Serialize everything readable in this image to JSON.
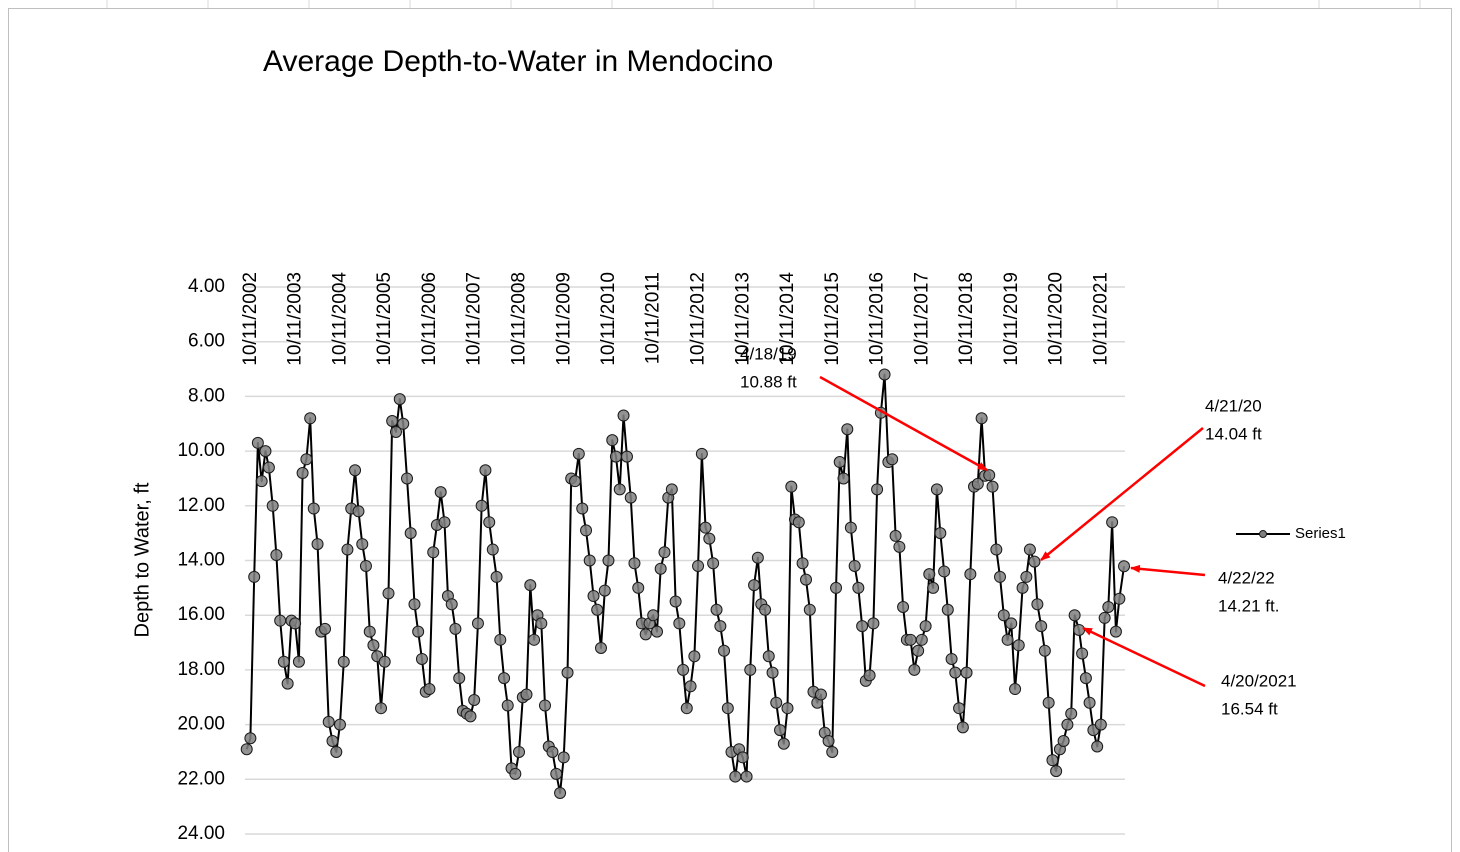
{
  "chart_data": {
    "type": "line",
    "title": "Average Depth-to-Water in Mendocino",
    "y_label": "Depth to Water, ft",
    "x": [
      "2002-09-15",
      "2002-10-15",
      "2002-11-15",
      "2002-12-15",
      "2003-01-15",
      "2003-02-15",
      "2003-03-15",
      "2003-04-15",
      "2003-05-15",
      "2003-06-15",
      "2003-07-15",
      "2003-08-15",
      "2003-09-15",
      "2003-10-15",
      "2003-11-15",
      "2003-12-15",
      "2004-01-15",
      "2004-02-15",
      "2004-03-15",
      "2004-04-15",
      "2004-05-15",
      "2004-06-15",
      "2004-07-15",
      "2004-08-15",
      "2004-09-15",
      "2004-10-15",
      "2004-11-15",
      "2004-12-15",
      "2005-01-15",
      "2005-02-15",
      "2005-03-15",
      "2005-04-15",
      "2005-05-15",
      "2005-06-15",
      "2005-07-15",
      "2005-08-15",
      "2005-09-15",
      "2005-10-15",
      "2005-11-15",
      "2005-12-15",
      "2006-01-15",
      "2006-02-15",
      "2006-03-15",
      "2006-04-15",
      "2006-05-15",
      "2006-06-15",
      "2006-07-15",
      "2006-08-15",
      "2006-09-15",
      "2006-10-15",
      "2006-11-15",
      "2006-12-15",
      "2007-01-15",
      "2007-02-15",
      "2007-03-15",
      "2007-04-15",
      "2007-05-15",
      "2007-06-15",
      "2007-07-15",
      "2007-08-15",
      "2007-09-15",
      "2007-10-15",
      "2007-11-15",
      "2007-12-15",
      "2008-01-15",
      "2008-02-15",
      "2008-03-15",
      "2008-04-15",
      "2008-05-15",
      "2008-06-15",
      "2008-07-15",
      "2008-08-15",
      "2008-09-15",
      "2008-10-15",
      "2008-11-15",
      "2008-12-15",
      "2009-01-15",
      "2009-02-15",
      "2009-03-15",
      "2009-04-15",
      "2009-05-15",
      "2009-06-15",
      "2009-07-15",
      "2009-08-15",
      "2009-09-15",
      "2009-10-15",
      "2009-11-15",
      "2009-12-15",
      "2010-01-15",
      "2010-02-15",
      "2010-03-15",
      "2010-04-15",
      "2010-05-15",
      "2010-06-15",
      "2010-07-15",
      "2010-08-15",
      "2010-09-15",
      "2010-10-15",
      "2010-11-15",
      "2010-12-15",
      "2011-01-15",
      "2011-02-15",
      "2011-03-15",
      "2011-04-15",
      "2011-05-15",
      "2011-06-15",
      "2011-07-15",
      "2011-08-15",
      "2011-09-15",
      "2011-10-15",
      "2011-11-15",
      "2011-12-15",
      "2012-01-15",
      "2012-02-15",
      "2012-03-15",
      "2012-04-15",
      "2012-05-15",
      "2012-06-15",
      "2012-07-15",
      "2012-08-15",
      "2012-09-15",
      "2012-10-15",
      "2012-11-15",
      "2012-12-15",
      "2013-01-15",
      "2013-02-15",
      "2013-03-15",
      "2013-04-15",
      "2013-05-15",
      "2013-06-15",
      "2013-07-15",
      "2013-08-15",
      "2013-09-15",
      "2013-10-15",
      "2013-11-15",
      "2013-12-15",
      "2014-01-15",
      "2014-02-15",
      "2014-03-15",
      "2014-04-15",
      "2014-05-15",
      "2014-06-15",
      "2014-07-15",
      "2014-08-15",
      "2014-09-15",
      "2014-10-15",
      "2014-11-15",
      "2014-12-15",
      "2015-01-15",
      "2015-02-15",
      "2015-03-15",
      "2015-04-15",
      "2015-05-15",
      "2015-06-15",
      "2015-07-15",
      "2015-08-15",
      "2015-09-15",
      "2015-10-15",
      "2015-11-15",
      "2015-12-15",
      "2016-01-15",
      "2016-02-15",
      "2016-03-15",
      "2016-04-15",
      "2016-05-15",
      "2016-06-15",
      "2016-07-15",
      "2016-08-15",
      "2016-09-15",
      "2016-10-15",
      "2016-11-15",
      "2016-12-15",
      "2017-01-15",
      "2017-02-15",
      "2017-03-15",
      "2017-04-15",
      "2017-05-15",
      "2017-06-15",
      "2017-07-15",
      "2017-08-15",
      "2017-09-15",
      "2017-10-15",
      "2017-11-15",
      "2017-12-15",
      "2018-01-15",
      "2018-02-15",
      "2018-03-15",
      "2018-04-15",
      "2018-05-15",
      "2018-06-15",
      "2018-07-15",
      "2018-08-15",
      "2018-09-15",
      "2018-10-15",
      "2018-11-15",
      "2018-12-15",
      "2019-01-15",
      "2019-02-15",
      "2019-03-15",
      "2019-04-18",
      "2019-05-15",
      "2019-06-15",
      "2019-07-15",
      "2019-08-15",
      "2019-09-15",
      "2019-10-15",
      "2019-11-15",
      "2019-12-15",
      "2020-01-15",
      "2020-02-15",
      "2020-03-15",
      "2020-04-21",
      "2020-05-15",
      "2020-06-15",
      "2020-07-15",
      "2020-08-15",
      "2020-09-15",
      "2020-10-15",
      "2020-11-15",
      "2020-12-15",
      "2021-01-15",
      "2021-02-15",
      "2021-03-15",
      "2021-04-20",
      "2021-05-15",
      "2021-06-15",
      "2021-07-15",
      "2021-08-15",
      "2021-09-15",
      "2021-10-15",
      "2021-11-15",
      "2021-12-15",
      "2022-01-15",
      "2022-02-15",
      "2022-03-15",
      "2022-04-22"
    ],
    "series": [
      {
        "name": "Series1",
        "color": "#000000",
        "marker_color": "#808080",
        "values": [
          20.9,
          20.5,
          14.6,
          9.7,
          11.1,
          10.0,
          10.6,
          12.0,
          13.8,
          16.2,
          17.7,
          18.5,
          16.2,
          16.3,
          17.7,
          10.8,
          10.3,
          8.8,
          12.1,
          13.4,
          16.6,
          16.5,
          19.9,
          20.6,
          21.0,
          20.0,
          17.7,
          13.6,
          12.1,
          10.7,
          12.2,
          13.4,
          14.2,
          16.6,
          17.1,
          17.5,
          19.4,
          17.7,
          15.2,
          8.9,
          9.3,
          8.1,
          9.0,
          11.0,
          13.0,
          15.6,
          16.6,
          17.6,
          18.8,
          18.7,
          13.7,
          12.7,
          11.5,
          12.6,
          15.3,
          15.6,
          16.5,
          18.3,
          19.5,
          19.6,
          19.7,
          19.1,
          16.3,
          12.0,
          10.7,
          12.6,
          13.6,
          14.6,
          16.9,
          18.3,
          19.3,
          21.6,
          21.8,
          21.0,
          19.0,
          18.9,
          14.9,
          16.9,
          16.0,
          16.3,
          19.3,
          20.8,
          21.0,
          21.8,
          22.5,
          21.2,
          18.1,
          11.0,
          11.1,
          10.1,
          12.1,
          12.9,
          14.0,
          15.3,
          15.8,
          17.2,
          15.1,
          14.0,
          9.6,
          10.2,
          11.4,
          8.7,
          10.2,
          11.7,
          14.1,
          15.0,
          16.3,
          16.7,
          16.3,
          16.0,
          16.6,
          14.3,
          13.7,
          11.7,
          11.4,
          15.5,
          16.3,
          18.0,
          19.4,
          18.6,
          17.5,
          14.2,
          10.1,
          12.8,
          13.2,
          14.1,
          15.8,
          16.4,
          17.3,
          19.4,
          21.0,
          21.9,
          20.9,
          21.2,
          21.9,
          18.0,
          14.9,
          13.9,
          15.6,
          15.8,
          17.5,
          18.1,
          19.2,
          20.2,
          20.7,
          19.4,
          11.3,
          12.5,
          12.6,
          14.1,
          14.7,
          15.8,
          18.8,
          19.2,
          18.9,
          20.3,
          20.6,
          21.0,
          15.0,
          10.4,
          11.0,
          9.2,
          12.8,
          14.2,
          15.0,
          16.4,
          18.4,
          18.2,
          16.3,
          11.4,
          8.6,
          7.2,
          10.4,
          10.3,
          13.1,
          13.5,
          15.7,
          16.9,
          16.9,
          18.0,
          17.3,
          16.9,
          16.4,
          14.5,
          15.0,
          11.4,
          13.0,
          14.4,
          15.8,
          17.6,
          18.1,
          19.4,
          20.1,
          18.1,
          14.5,
          11.3,
          11.2,
          8.8,
          10.9,
          10.88,
          11.3,
          13.6,
          14.6,
          16.0,
          16.9,
          16.3,
          18.7,
          17.1,
          15.0,
          14.6,
          13.6,
          14.04,
          15.6,
          16.4,
          17.3,
          19.2,
          21.3,
          21.7,
          20.9,
          20.6,
          20.0,
          19.6,
          16.0,
          16.54,
          17.4,
          18.3,
          19.2,
          20.2,
          20.8,
          20.0,
          16.1,
          15.7,
          12.6,
          16.6,
          15.4,
          14.21
        ]
      }
    ],
    "xlim": [
      "2002-09-01",
      "2022-04-30"
    ],
    "xticks": [
      {
        "value": "2002-10-11",
        "label": "10/11/2002"
      },
      {
        "value": "2003-10-11",
        "label": "10/11/2003"
      },
      {
        "value": "2004-10-11",
        "label": "10/11/2004"
      },
      {
        "value": "2005-10-11",
        "label": "10/11/2005"
      },
      {
        "value": "2006-10-11",
        "label": "10/11/2006"
      },
      {
        "value": "2007-10-11",
        "label": "10/11/2007"
      },
      {
        "value": "2008-10-11",
        "label": "10/11/2008"
      },
      {
        "value": "2009-10-11",
        "label": "10/11/2009"
      },
      {
        "value": "2010-10-11",
        "label": "10/11/2010"
      },
      {
        "value": "2011-10-11",
        "label": "10/11/2011"
      },
      {
        "value": "2012-10-11",
        "label": "10/11/2012"
      },
      {
        "value": "2013-10-11",
        "label": "10/11/2013"
      },
      {
        "value": "2014-10-11",
        "label": "10/11/2014"
      },
      {
        "value": "2015-10-11",
        "label": "10/11/2015"
      },
      {
        "value": "2016-10-11",
        "label": "10/11/2016"
      },
      {
        "value": "2017-10-11",
        "label": "10/11/2017"
      },
      {
        "value": "2018-10-11",
        "label": "10/11/2018"
      },
      {
        "value": "2019-10-11",
        "label": "10/11/2019"
      },
      {
        "value": "2020-10-11",
        "label": "10/11/2020"
      },
      {
        "value": "2021-10-11",
        "label": "10/11/2021"
      }
    ],
    "ylim": [
      4,
      24
    ],
    "yticks": [
      {
        "value": 4,
        "label": "4.00"
      },
      {
        "value": 6,
        "label": "6.00"
      },
      {
        "value": 8,
        "label": "8.00"
      },
      {
        "value": 10,
        "label": "10.00"
      },
      {
        "value": 12,
        "label": "12.00"
      },
      {
        "value": 14,
        "label": "14.00"
      },
      {
        "value": 16,
        "label": "16.00"
      },
      {
        "value": 18,
        "label": "18.00"
      },
      {
        "value": 20,
        "label": "20.00"
      },
      {
        "value": 22,
        "label": "22.00"
      },
      {
        "value": 24,
        "label": "24.00"
      }
    ],
    "y_inverted": true,
    "grid": true,
    "legend": "right",
    "annotation_color": "#ff0000",
    "annotations": [
      {
        "date_label": "4/18/19",
        "value_label": "10.88 ft"
      },
      {
        "date_label": "4/21/20",
        "value_label": "14.04 ft"
      },
      {
        "date_label": "4/22/22",
        "value_label": "14.21 ft."
      },
      {
        "date_label": "4/20/2021",
        "value_label": "16.54 ft"
      }
    ]
  }
}
